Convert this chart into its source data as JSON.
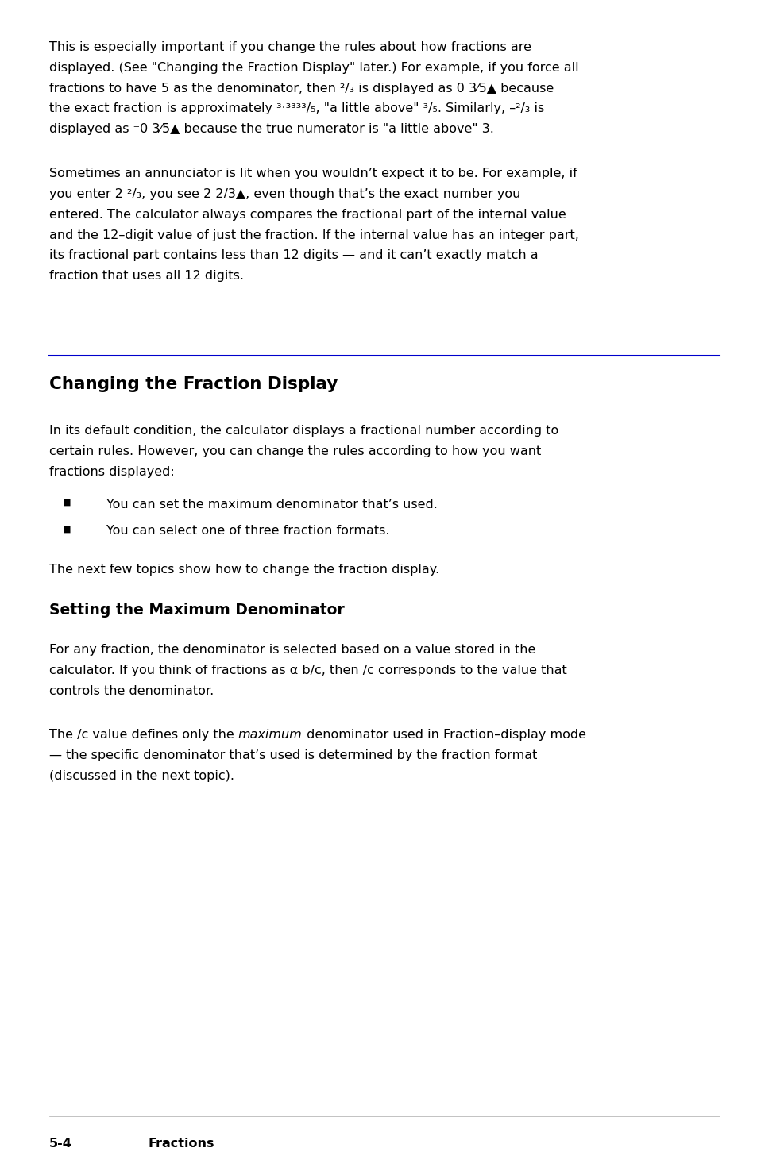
{
  "bg_color": "#ffffff",
  "text_color": "#000000",
  "blue_color": "#0000cc",
  "font_size_body": 11.5,
  "font_size_h1": 15.5,
  "font_size_h2": 13.5,
  "font_size_footer": 11.5,
  "page_width": 9.54,
  "page_height": 14.8,
  "h1_title": "Changing the Fraction Display",
  "bullet1": "You can set the maximum denominator that’s used.",
  "bullet2": "You can select one of three fraction formats.",
  "para4": "The next few topics show how to change the fraction display.",
  "h2_title": "Setting the Maximum Denominator",
  "footer_left": "5-4",
  "footer_right": "Fractions"
}
